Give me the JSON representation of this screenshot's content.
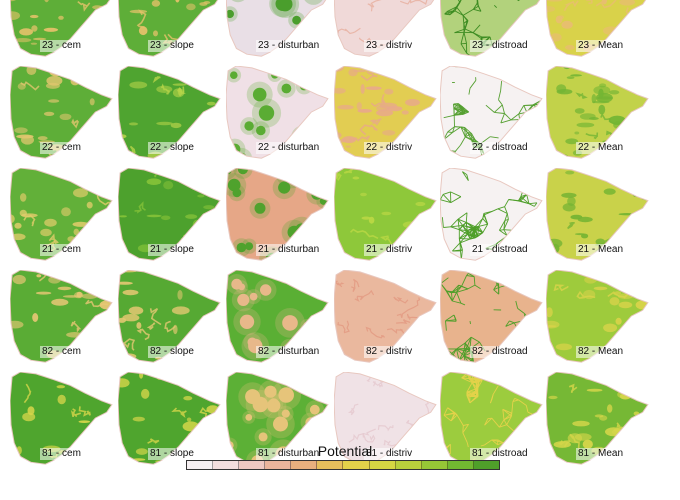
{
  "legend": {
    "title": "Potential",
    "colors": [
      "#f6f0f2",
      "#f3dede",
      "#efc8c2",
      "#ebb49c",
      "#e8b07e",
      "#e6bf5c",
      "#e3d24a",
      "#d6d743",
      "#b9d03c",
      "#96c636",
      "#72b831",
      "#4f9f2a"
    ]
  },
  "columns": [
    "cem",
    "slope",
    "disturban",
    "distriv",
    "distroad",
    "Mean"
  ],
  "rows": [
    {
      "period": "23",
      "panels": [
        {
          "label": "23 - cem",
          "type": "fill",
          "primary": "#5eae38",
          "secondary": "#e6c26a",
          "density": 0.55
        },
        {
          "label": "23 - slope",
          "type": "fill",
          "primary": "#5eae38",
          "secondary": "#e6c26a",
          "density": 0.7
        },
        {
          "label": "23 - disturban",
          "type": "spots",
          "primary": "#e9dfe6",
          "secondary": "#4a9e2c",
          "density": 0.3
        },
        {
          "label": "23 - distriv",
          "type": "veins",
          "primary": "#f0d9d8",
          "secondary": "#e8b3a4",
          "density": 0.2
        },
        {
          "label": "23 - distroad",
          "type": "mesh",
          "primary": "#b2d27c",
          "secondary": "#3d8c22",
          "density": 0.8
        },
        {
          "label": "23 - Mean",
          "type": "fill",
          "primary": "#d9d24a",
          "secondary": "#e8bd71",
          "density": 0.5
        }
      ]
    },
    {
      "period": "22",
      "panels": [
        {
          "label": "22 - cem",
          "type": "fill",
          "primary": "#5eae38",
          "secondary": "#e0c66e",
          "density": 0.65
        },
        {
          "label": "22 - slope",
          "type": "fill",
          "primary": "#4fa430",
          "secondary": "#b8d44a",
          "density": 0.75
        },
        {
          "label": "22 - disturban",
          "type": "spots",
          "primary": "#f0e0e6",
          "secondary": "#5aac33",
          "density": 0.5
        },
        {
          "label": "22 - distriv",
          "type": "fill",
          "primary": "#e2cd52",
          "secondary": "#e8a88c",
          "density": 0.55
        },
        {
          "label": "22 - distroad",
          "type": "mesh",
          "primary": "#f6f2f2",
          "secondary": "#56a032",
          "density": 0.6
        },
        {
          "label": "22 - Mean",
          "type": "fill",
          "primary": "#c2d24a",
          "secondary": "#73b534",
          "density": 0.5
        }
      ]
    },
    {
      "period": "21",
      "panels": [
        {
          "label": "21 - cem",
          "type": "fill",
          "primary": "#62b039",
          "secondary": "#e4cd6c",
          "density": 0.6
        },
        {
          "label": "21 - slope",
          "type": "fill",
          "primary": "#4da12d",
          "secondary": "#84c238",
          "density": 0.85
        },
        {
          "label": "21 - disturban",
          "type": "spots",
          "primary": "#e6a787",
          "secondary": "#4fa22d",
          "density": 0.55
        },
        {
          "label": "21 - distriv",
          "type": "fill",
          "primary": "#8ec83a",
          "secondary": "#bcd845",
          "density": 0.85
        },
        {
          "label": "21 - distroad",
          "type": "mesh",
          "primary": "#f6f2f2",
          "secondary": "#4f9f2a",
          "density": 0.6
        },
        {
          "label": "21 - Mean",
          "type": "fill",
          "primary": "#c9d24a",
          "secondary": "#75b433",
          "density": 0.55
        }
      ]
    },
    {
      "period": "82",
      "panels": [
        {
          "label": "82 - cem",
          "type": "fill",
          "primary": "#5aac35",
          "secondary": "#e8c775",
          "density": 0.65
        },
        {
          "label": "82 - slope",
          "type": "fill",
          "primary": "#56a933",
          "secondary": "#e6c873",
          "density": 0.7
        },
        {
          "label": "82 - disturban",
          "type": "spots",
          "primary": "#5aaf34",
          "secondary": "#e8b88a",
          "density": 0.6
        },
        {
          "label": "82 - distriv",
          "type": "veins",
          "primary": "#eab89e",
          "secondary": "#e39c84",
          "density": 0.3
        },
        {
          "label": "82 - distroad",
          "type": "mesh",
          "primary": "#e8b38d",
          "secondary": "#4f9f2a",
          "density": 0.85
        },
        {
          "label": "82 - Mean",
          "type": "fill",
          "primary": "#9ecb3c",
          "secondary": "#d9d34a",
          "density": 0.55
        }
      ]
    },
    {
      "period": "81",
      "panels": [
        {
          "label": "81 - cem",
          "type": "fill",
          "primary": "#4fa52e",
          "secondary": "#d6d64a",
          "density": 0.8
        },
        {
          "label": "81 - slope",
          "type": "fill",
          "primary": "#4fa52e",
          "secondary": "#d6d64a",
          "density": 0.8
        },
        {
          "label": "81 - disturban",
          "type": "spots",
          "primary": "#5cb036",
          "secondary": "#e6c47a",
          "density": 0.5
        },
        {
          "label": "81 - distriv",
          "type": "veins",
          "primary": "#f0e2e6",
          "secondary": "#e6cbd0",
          "density": 0.2
        },
        {
          "label": "81 - distroad",
          "type": "mesh",
          "primary": "#9ccc3e",
          "secondary": "#e3d24a",
          "density": 0.85
        },
        {
          "label": "81 - Mean",
          "type": "fill",
          "primary": "#76b835",
          "secondary": "#d6d64a",
          "density": 0.6
        }
      ]
    }
  ]
}
